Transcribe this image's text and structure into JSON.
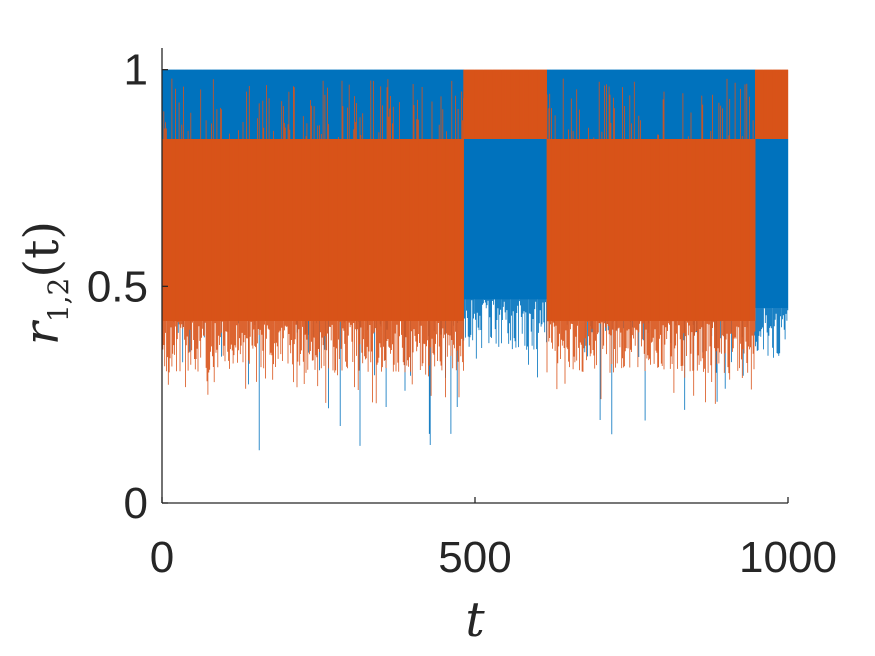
{
  "chart_data": {
    "type": "line",
    "xlabel_symbol": "t",
    "ylabel_main": "r",
    "ylabel_subscript": "1,2",
    "ylabel_arg": "(t)",
    "xlim": [
      0,
      1000
    ],
    "ylim": [
      0,
      1.05
    ],
    "x_ticks": [
      0,
      500,
      1000
    ],
    "x_tick_labels": [
      "0",
      "500",
      "1000"
    ],
    "y_ticks": [
      0,
      0.5,
      1
    ],
    "y_tick_labels": [
      "0",
      "0.5",
      "1"
    ],
    "grid": false,
    "legend": "none",
    "colors": {
      "series1": "#0072BD",
      "series2": "#D95319",
      "axis": "#262626"
    },
    "series": [
      {
        "color_key": "series1",
        "segments": [
          {
            "x_start": 0,
            "x_end": 482,
            "min": 0.38,
            "max": 1.0,
            "mode": "high"
          },
          {
            "x_start": 482,
            "x_end": 615,
            "min": 0.35,
            "max": 0.84,
            "mode": "wide"
          },
          {
            "x_start": 615,
            "x_end": 948,
            "min": 0.38,
            "max": 1.0,
            "mode": "high"
          },
          {
            "x_start": 948,
            "x_end": 1000,
            "min": 0.33,
            "max": 0.84,
            "mode": "wide"
          }
        ]
      },
      {
        "color_key": "series2",
        "segments": [
          {
            "x_start": 0,
            "x_end": 482,
            "min": 0.3,
            "max": 0.84,
            "mode": "wide"
          },
          {
            "x_start": 482,
            "x_end": 615,
            "min": 0.84,
            "max": 1.0,
            "mode": "high"
          },
          {
            "x_start": 615,
            "x_end": 948,
            "min": 0.3,
            "max": 0.84,
            "mode": "wide"
          },
          {
            "x_start": 948,
            "x_end": 1000,
            "min": 0.84,
            "max": 1.0,
            "mode": "high"
          }
        ]
      }
    ]
  }
}
